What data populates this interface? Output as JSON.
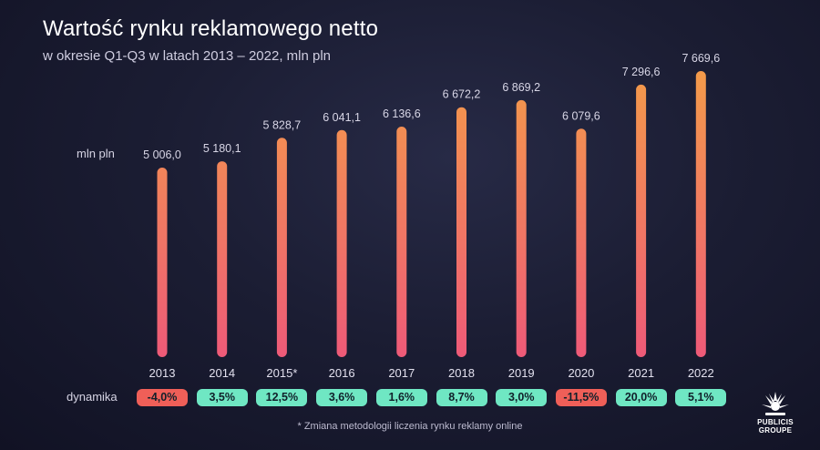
{
  "title": "Wartość rynku reklamowego netto",
  "subtitle": "w okresie Q1-Q3 w latach 2013 – 2022, mln pln",
  "unit_label": "mln pln",
  "dynamics_label": "dynamika",
  "footnote": "* Zmiana metodologii liczenia rynku reklamy online",
  "logo": {
    "line1": "PUBLICIS",
    "line2": "GROUPE"
  },
  "colors": {
    "bar_top": "#f39a4a",
    "bar_bottom": "#ee5a78",
    "positive_pill": "#6fe7c3",
    "negative_pill": "#ef5f58"
  },
  "chart_data": {
    "type": "bar",
    "categories": [
      "2013",
      "2014",
      "2015*",
      "2016",
      "2017",
      "2018",
      "2019",
      "2020",
      "2021",
      "2022"
    ],
    "values": [
      5006.0,
      5180.1,
      5828.7,
      6041.1,
      6136.6,
      6672.2,
      6869.2,
      6079.6,
      7296.6,
      7669.6
    ],
    "value_labels": [
      "5 006,0",
      "5 180,1",
      "5 828,7",
      "6 041,1",
      "6 136,6",
      "6 672,2",
      "6 869,2",
      "6 079,6",
      "7 296,6",
      "7 669,6"
    ],
    "dynamics": [
      "-4,0%",
      "3,5%",
      "12,5%",
      "3,6%",
      "1,6%",
      "8,7%",
      "3,0%",
      "-11,5%",
      "20,0%",
      "5,1%"
    ],
    "dynamics_values": [
      -4.0,
      3.5,
      12.5,
      3.6,
      1.6,
      8.7,
      3.0,
      -11.5,
      20.0,
      5.1
    ],
    "ylabel": "mln pln",
    "grid": false
  }
}
